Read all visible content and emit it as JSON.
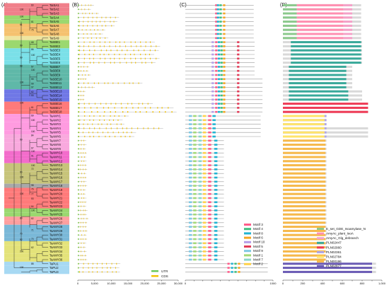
{
  "figure": {
    "panels": {
      "a": "(A)",
      "b": "(B)",
      "c": "(C)",
      "d": "(D)"
    },
    "colors": {
      "sa": "#f07f8a",
      "sa_band": "#f6b1b6",
      "sbe": "#9bd86f",
      "sbe_band": "#55c45a",
      "cyan": "#7ae0e8",
      "teal": "#5fb8a8",
      "blue": "#6f77e6",
      "red": "#ff7a7a",
      "amy": "#ff9be0",
      "amy_band": "#f36ccb",
      "khaki": "#c7c47a",
      "grey": "#a9a9a9",
      "yellow": "#ffe44d",
      "pu": "#a7d9f3",
      "pu2": "#8ad0f0",
      "utr": "#66c659",
      "cds": "#f2c200",
      "intron": "#9a9a9a"
    },
    "genes": [
      "TaISA1",
      "TaISA2",
      "TaISA3",
      "TaISA4",
      "TaISA5",
      "TaISA6",
      "TaISA7",
      "TaISA8",
      "TaISA9",
      "TaSBE1",
      "TaSBE2",
      "TaSBE3",
      "TaSBE4",
      "TaSBE5",
      "TaSBE6",
      "TaSBE7",
      "TaSBE8",
      "TaSBE9",
      "TaSBE10",
      "TaSBE11",
      "TaSBE12",
      "TaSBE13",
      "TaSBE14",
      "TaSBE15",
      "TaSBE16",
      "TaSBE17",
      "TaSBE18",
      "TaAMY1",
      "TaAMY2",
      "TaAMY3",
      "TaAMY4",
      "TaAMY5",
      "TaAMY6",
      "TaAMY7",
      "TaAMY8",
      "TaAMY9",
      "TaAMY10",
      "TaAMY11",
      "TaAMY12",
      "TaAMY13",
      "TaAMY14",
      "TaAMY15",
      "TaAMY16",
      "TaAMY17",
      "TaAMY18",
      "TaAMY19",
      "TaAMY20",
      "TaAMY21",
      "TaAMY22",
      "TaAMY23",
      "TaAMY24",
      "TaAMY25",
      "TaAMY26",
      "TaAMY27",
      "TaAMY28",
      "TaAMY29",
      "TaAMY30",
      "TaAMY31",
      "TaAMY32",
      "TaAMY33",
      "TaAMY34",
      "TaAMY35",
      "TaAMY36",
      "TaPU1",
      "TaPU2",
      "TaPU3"
    ],
    "bootstrap": [
      {
        "text": "60",
        "row": 0.5,
        "pos": "right"
      },
      {
        "text": "100",
        "row": 1.5,
        "pos": "left"
      },
      {
        "text": "100",
        "row": 3.2,
        "pos": "left"
      },
      {
        "text": "81",
        "row": 4.5,
        "pos": "right"
      },
      {
        "text": "61",
        "row": 5.2,
        "pos": "left"
      },
      {
        "text": "75",
        "row": 6.5,
        "pos": "right"
      },
      {
        "text": "100",
        "row": 7.3,
        "pos": "left"
      },
      {
        "text": "68",
        "row": 9.5,
        "pos": "right"
      },
      {
        "text": "99",
        "row": 10.3,
        "pos": "left"
      },
      {
        "text": "86",
        "row": 11.3,
        "pos": "right"
      },
      {
        "text": "100",
        "row": 12.6,
        "pos": "right"
      },
      {
        "text": "99",
        "row": 13.2,
        "pos": "left"
      },
      {
        "text": "98",
        "row": 15.3,
        "pos": "left"
      },
      {
        "text": "57",
        "row": 15.5,
        "pos": "right"
      },
      {
        "text": "100",
        "row": 16.3,
        "pos": "right"
      },
      {
        "text": "99",
        "row": 18.5,
        "pos": "right"
      },
      {
        "text": "100",
        "row": 19.3,
        "pos": "left"
      },
      {
        "text": "99",
        "row": 19.6,
        "pos": "right"
      },
      {
        "text": "97",
        "row": 20.5,
        "pos": "right"
      },
      {
        "text": "62",
        "row": 21.6,
        "pos": "right"
      },
      {
        "text": "53",
        "row": 22.5,
        "pos": "right"
      },
      {
        "text": "100",
        "row": 24.3,
        "pos": "left"
      },
      {
        "text": "61",
        "row": 25.4,
        "pos": "right"
      },
      {
        "text": "69",
        "row": 27.4,
        "pos": "right"
      },
      {
        "text": "100",
        "row": 28.5,
        "pos": "right"
      },
      {
        "text": "100",
        "row": 31.3,
        "pos": "right"
      },
      {
        "text": "84",
        "row": 32.2,
        "pos": "right"
      },
      {
        "text": "99",
        "row": 33.2,
        "pos": "left"
      },
      {
        "text": "67",
        "row": 35.3,
        "pos": "right"
      },
      {
        "text": "100",
        "row": 36.1,
        "pos": "right"
      },
      {
        "text": "91",
        "row": 37.2,
        "pos": "right"
      },
      {
        "text": "100",
        "row": 39.5,
        "pos": "right"
      },
      {
        "text": "72",
        "row": 40.4,
        "pos": "right"
      },
      {
        "text": "90",
        "row": 41.2,
        "pos": "left"
      },
      {
        "text": "100",
        "row": 42.4,
        "pos": "left"
      },
      {
        "text": "98",
        "row": 44.4,
        "pos": "right"
      },
      {
        "text": "76",
        "row": 45.3,
        "pos": "right"
      },
      {
        "text": "100",
        "row": 46.4,
        "pos": "left"
      },
      {
        "text": "77",
        "row": 46.5,
        "pos": "right"
      },
      {
        "text": "53",
        "row": 47.6,
        "pos": "right"
      },
      {
        "text": "64",
        "row": 49.5,
        "pos": "right"
      },
      {
        "text": "100",
        "row": 50.5,
        "pos": "right"
      },
      {
        "text": "89",
        "row": 52.4,
        "pos": "left"
      },
      {
        "text": "82",
        "row": 52.5,
        "pos": "right"
      },
      {
        "text": "71",
        "row": 55.3,
        "pos": "right"
      },
      {
        "text": "70",
        "row": 56.2,
        "pos": "left"
      },
      {
        "text": "70",
        "row": 57.5,
        "pos": "right"
      },
      {
        "text": "92",
        "row": 57.6,
        "pos": "left"
      },
      {
        "text": "62",
        "row": 59.5,
        "pos": "right"
      },
      {
        "text": "100",
        "row": 60.5,
        "pos": "left"
      },
      {
        "text": "88",
        "row": 63.5,
        "pos": "right"
      },
      {
        "text": "100",
        "row": 64.4,
        "pos": "left"
      }
    ],
    "gene_x_ticks": [
      "0",
      "5,000",
      "10,000",
      "15,000",
      "20,000",
      "25,000",
      "30,000"
    ],
    "motif_x_ticks": [
      "0",
      "100",
      "200",
      "300",
      "400",
      "500",
      "600",
      "700",
      "800",
      "900",
      "1000"
    ],
    "domain_x_ticks": [
      "0",
      "100",
      "200",
      "300",
      "400",
      "500",
      "600",
      "700",
      "800",
      "900",
      "1,000"
    ],
    "gene_legend": [
      {
        "label": "UTR",
        "color": "#66c659"
      },
      {
        "label": "CDS",
        "color": "#f2c200"
      }
    ],
    "motif_legend": [
      {
        "label": "Motif 3",
        "color": "#ff5c8a"
      },
      {
        "label": "Motif 4",
        "color": "#3fbf7f"
      },
      {
        "label": "Motif 8",
        "color": "#22b4d2"
      },
      {
        "label": "Motif 6",
        "color": "#f5a623"
      },
      {
        "label": "Motif 10",
        "color": "#b59ce8"
      },
      {
        "label": "Motif 5",
        "color": "#e23b57"
      },
      {
        "label": "Motif 9",
        "color": "#7ec8e3"
      },
      {
        "label": "Motif 1",
        "color": "#a3d977"
      },
      {
        "label": "Motif 7",
        "color": "#8ad6c8"
      },
      {
        "label": "Motif 2",
        "color": "#ffd24a"
      }
    ],
    "domain_legend": [
      {
        "label": "E_set_GDE_Isoamylase_N",
        "color": "#8bc98c"
      },
      {
        "label": "AmyAc_plant_IsoA",
        "color": "#ff8fb1"
      },
      {
        "label": "AmyAc_Glg_debranch",
        "color": "#f4a1c8"
      },
      {
        "label": "PLN02447",
        "color": "#39a99a"
      },
      {
        "label": "PLN02960",
        "color": "#ef3b56"
      },
      {
        "label": "PLN02361",
        "color": "#b0a6e6"
      },
      {
        "label": "PLN02784",
        "color": "#ffe46a"
      },
      {
        "label": "PLN00196",
        "color": "#f7b94a"
      },
      {
        "label": "PLN02877",
        "color": "#6b5bb5"
      }
    ]
  }
}
